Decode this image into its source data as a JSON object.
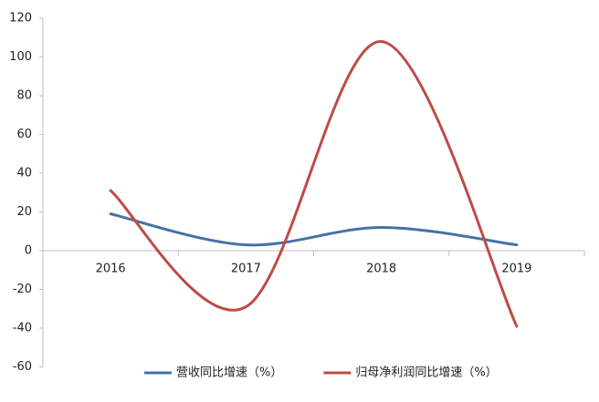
{
  "chart_data": {
    "type": "line",
    "smooth": true,
    "categories": [
      "2016",
      "2017",
      "2018",
      "2019"
    ],
    "series": [
      {
        "name": "营收同比增速（%）",
        "color": "#4472a8",
        "values": [
          19,
          3,
          12,
          3
        ]
      },
      {
        "name": "归母净利润同比增速（%）",
        "color": "#be4b48",
        "values": [
          31,
          -29,
          108,
          -39
        ]
      }
    ],
    "ylim": [
      -60,
      120
    ],
    "yticks": [
      -60,
      -40,
      -20,
      0,
      20,
      40,
      60,
      80,
      100,
      120
    ],
    "grid": false,
    "legend": "bottom"
  }
}
